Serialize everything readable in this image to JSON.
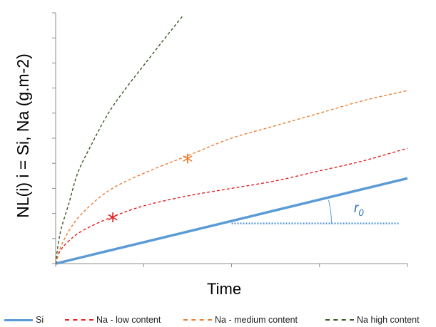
{
  "chart_data": {
    "type": "line",
    "title": "",
    "xlabel": "Time",
    "ylabel": "NL(i) i = Si, Na (g.m-2)",
    "xlim": [
      0,
      4
    ],
    "ylim": [
      0,
      10
    ],
    "grid": false,
    "x_tick_count": 5,
    "y_tick_count": 11,
    "series": [
      {
        "name": "Si",
        "color": "#5b9bd5",
        "style": "solid",
        "points": [
          [
            0,
            0.0
          ],
          [
            4,
            3.4
          ]
        ]
      },
      {
        "name": "Na - low content",
        "color": "#e02020",
        "style": "dashed",
        "points": [
          [
            0,
            0.0
          ],
          [
            0.05,
            0.5
          ],
          [
            0.15,
            0.9
          ],
          [
            0.3,
            1.3
          ],
          [
            0.6,
            1.8
          ],
          [
            1.0,
            2.3
          ],
          [
            1.5,
            2.7
          ],
          [
            2.0,
            3.0
          ],
          [
            2.5,
            3.3
          ],
          [
            3.0,
            3.7
          ],
          [
            3.5,
            4.1
          ],
          [
            4.0,
            4.6
          ]
        ]
      },
      {
        "name": "Na - medium content",
        "color": "#ed7d31",
        "style": "dashed",
        "points": [
          [
            0,
            0.0
          ],
          [
            0.05,
            0.6
          ],
          [
            0.15,
            1.3
          ],
          [
            0.3,
            2.0
          ],
          [
            0.6,
            2.9
          ],
          [
            1.0,
            3.6
          ],
          [
            1.5,
            4.3
          ],
          [
            2.0,
            5.0
          ],
          [
            2.5,
            5.5
          ],
          [
            3.0,
            6.0
          ],
          [
            3.5,
            6.5
          ],
          [
            4.0,
            6.9
          ]
        ]
      },
      {
        "name": "Na high content",
        "color": "#375623",
        "style": "dashed",
        "points": [
          [
            0,
            0.0
          ],
          [
            0.05,
            1.2
          ],
          [
            0.15,
            2.4
          ],
          [
            0.25,
            3.6
          ],
          [
            0.4,
            4.7
          ],
          [
            0.6,
            6.0
          ],
          [
            0.8,
            7.0
          ],
          [
            1.0,
            7.9
          ],
          [
            1.2,
            8.8
          ],
          [
            1.45,
            9.9
          ]
        ]
      }
    ],
    "markers": [
      {
        "symbol": "*",
        "color": "#e02020",
        "x": 0.65,
        "y": 1.8
      },
      {
        "symbol": "*",
        "color": "#ed7d31",
        "x": 1.5,
        "y": 4.15
      }
    ],
    "annotation": {
      "text": "r",
      "subscript": "0",
      "color": "#2e75b6",
      "reference_line": {
        "x": [
          2.0,
          3.9
        ],
        "y": 1.6,
        "style": "dotted"
      }
    },
    "legend_position": "bottom"
  }
}
